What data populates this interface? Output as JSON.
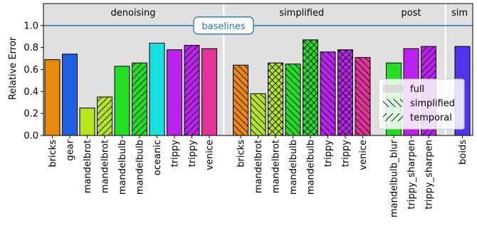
{
  "chart_data": {
    "type": "bar",
    "ylabel": "Relative Error",
    "ylim": [
      0,
      1.2
    ],
    "yticks": [
      0.0,
      0.2,
      0.4,
      0.6,
      0.8,
      1.0
    ],
    "ytick_labels": [
      "0.0",
      "0.2",
      "0.4",
      "0.6",
      "0.8",
      "1.0"
    ],
    "grid": false,
    "baseline": {
      "value": 1.0,
      "label": "baselines",
      "color": "#1f77b4"
    },
    "groups": [
      {
        "name": "denoising",
        "shade_color": "#e0e0e0"
      },
      {
        "name": "simplified",
        "shade_color": "#e0e0e0"
      },
      {
        "name": "post",
        "shade_color": "#e0e0e0"
      },
      {
        "name": "sim",
        "shade_color": "#e0e0e0"
      }
    ],
    "bars": [
      {
        "group": "denoising",
        "label": "bricks",
        "value": 0.69,
        "color": "#e8890c",
        "hatch": "none"
      },
      {
        "group": "denoising",
        "label": "gear",
        "value": 0.74,
        "color": "#1f5fe0",
        "hatch": "none"
      },
      {
        "group": "denoising",
        "label": "mandelbrot",
        "value": 0.25,
        "color": "#b5e61d",
        "hatch": "none"
      },
      {
        "group": "denoising",
        "label": "mandelbrot",
        "value": 0.35,
        "color": "#b5e61d",
        "hatch": "temporal"
      },
      {
        "group": "denoising",
        "label": "mandelbulb",
        "value": 0.63,
        "color": "#22dd22",
        "hatch": "none"
      },
      {
        "group": "denoising",
        "label": "mandelbulb",
        "value": 0.66,
        "color": "#22dd22",
        "hatch": "temporal"
      },
      {
        "group": "denoising",
        "label": "oceanic",
        "value": 0.84,
        "color": "#18e0e0",
        "hatch": "none"
      },
      {
        "group": "denoising",
        "label": "trippy",
        "value": 0.78,
        "color": "#bb22ee",
        "hatch": "none"
      },
      {
        "group": "denoising",
        "label": "trippy",
        "value": 0.82,
        "color": "#bb22ee",
        "hatch": "temporal"
      },
      {
        "group": "denoising",
        "label": "venice",
        "value": 0.79,
        "color": "#e0339a",
        "hatch": "none"
      },
      {
        "group": "simplified",
        "label": "bricks",
        "value": 0.64,
        "color": "#e8890c",
        "hatch": "simplified"
      },
      {
        "group": "simplified",
        "label": "mandelbrot",
        "value": 0.38,
        "color": "#b5e61d",
        "hatch": "simplified"
      },
      {
        "group": "simplified",
        "label": "mandelbrot",
        "value": 0.66,
        "color": "#b5e61d",
        "hatch": "both"
      },
      {
        "group": "simplified",
        "label": "mandelbulb",
        "value": 0.65,
        "color": "#22dd22",
        "hatch": "simplified"
      },
      {
        "group": "simplified",
        "label": "mandelbulb",
        "value": 0.87,
        "color": "#22dd22",
        "hatch": "both"
      },
      {
        "group": "simplified",
        "label": "trippy",
        "value": 0.76,
        "color": "#bb22ee",
        "hatch": "simplified"
      },
      {
        "group": "simplified",
        "label": "trippy",
        "value": 0.78,
        "color": "#bb22ee",
        "hatch": "both"
      },
      {
        "group": "simplified",
        "label": "venice",
        "value": 0.71,
        "color": "#e0339a",
        "hatch": "simplified"
      },
      {
        "group": "post",
        "label": "mandelbulb_blur",
        "value": 0.66,
        "color": "#22dd22",
        "hatch": "none"
      },
      {
        "group": "post",
        "label": "trippy_sharpen",
        "value": 0.79,
        "color": "#bb22ee",
        "hatch": "none"
      },
      {
        "group": "post",
        "label": "trippy_sharpen",
        "value": 0.81,
        "color": "#bb22ee",
        "hatch": "temporal"
      },
      {
        "group": "sim",
        "label": "boids",
        "value": 0.81,
        "color": "#5533ee",
        "hatch": "none"
      }
    ],
    "legend": {
      "position": "lower-right",
      "items": [
        {
          "label": "full",
          "hatch": "none",
          "color": "#d9d9d9"
        },
        {
          "label": "simplified",
          "hatch": "simplified",
          "color": "#ffffff"
        },
        {
          "label": "temporal",
          "hatch": "temporal",
          "color": "#ffffff"
        }
      ]
    }
  }
}
